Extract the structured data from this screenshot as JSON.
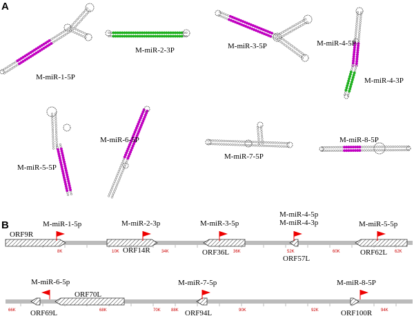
{
  "panel_a": {
    "label": "A",
    "hairpins": [
      {
        "label": "M-miR-1-5P"
      },
      {
        "label": "M-miR-2-3P"
      },
      {
        "label": "M-miR-3-5P"
      },
      {
        "label": "M-miR-4-5P"
      },
      {
        "label": "M-miR-4-3P"
      },
      {
        "label": "M-miR-5-5P"
      },
      {
        "label": "M-miR-6-5P"
      },
      {
        "label": "M-miR-7-5P"
      },
      {
        "label": "M-miR-8-5P"
      }
    ]
  },
  "panel_b": {
    "label": "B",
    "tracks": [
      {
        "mirnas": [
          "M-miR-1-5p",
          "M-miR-2-3p",
          "M-miR-3-5p",
          "M-miR-4-5p",
          "M-miR-4-3p",
          "M-miR-5-5p"
        ],
        "orfs": [
          "ORF9R",
          "ORF14R",
          "ORF36L",
          "ORF57L",
          "ORF62L"
        ],
        "ticks": [
          "8K",
          "10K",
          "34K",
          "36K",
          "52K",
          "60K",
          "62K"
        ]
      },
      {
        "mirnas": [
          "M-miR-6-5p",
          "M-miR-7-5p",
          "M-miR-8-5P"
        ],
        "orfs": [
          "ORF70L",
          "ORF69L",
          "ORF94L",
          "ORF100R"
        ],
        "ticks": [
          "66K",
          "68K",
          "70K",
          "88K",
          "90K",
          "92K",
          "94K"
        ]
      }
    ]
  }
}
